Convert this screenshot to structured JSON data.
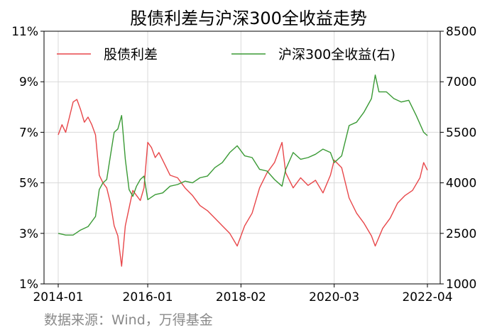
{
  "title": "股债利差与沪深300全收益走势",
  "source": "数据来源：Wind，万得基金",
  "chart_data": {
    "type": "line",
    "title": "股债利差与沪深300全收益走势",
    "grid": true,
    "legend_placement": "top",
    "x_tick_labels": [
      "2014-01",
      "2016-01",
      "2018-02",
      "2020-03",
      "2022-04"
    ],
    "x_range": [
      "2014-01",
      "2022-04"
    ],
    "left_axis": {
      "ticks": [
        "1%",
        "3%",
        "5%",
        "7%",
        "9%",
        "11%"
      ],
      "range": [
        1,
        11
      ]
    },
    "right_axis": {
      "ticks": [
        "1000",
        "2500",
        "4000",
        "5500",
        "7000",
        "8500"
      ],
      "range": [
        1000,
        8500
      ]
    },
    "series": [
      {
        "name": "股债利差",
        "axis": "left",
        "color": "#e8474a",
        "points": [
          [
            "2014-01",
            6.9
          ],
          [
            "2014-02",
            7.3
          ],
          [
            "2014-03",
            7.0
          ],
          [
            "2014-04",
            7.6
          ],
          [
            "2014-05",
            8.2
          ],
          [
            "2014-06",
            8.3
          ],
          [
            "2014-07",
            7.9
          ],
          [
            "2014-08",
            7.4
          ],
          [
            "2014-09",
            7.6
          ],
          [
            "2014-10",
            7.3
          ],
          [
            "2014-11",
            6.9
          ],
          [
            "2014-12",
            5.3
          ],
          [
            "2015-01",
            5.0
          ],
          [
            "2015-02",
            4.8
          ],
          [
            "2015-03",
            4.2
          ],
          [
            "2015-04",
            3.3
          ],
          [
            "2015-05",
            2.9
          ],
          [
            "2015-06",
            1.7
          ],
          [
            "2015-07",
            3.3
          ],
          [
            "2015-08",
            4.0
          ],
          [
            "2015-09",
            4.7
          ],
          [
            "2015-10",
            4.5
          ],
          [
            "2015-11",
            4.3
          ],
          [
            "2015-12",
            4.8
          ],
          [
            "2016-01",
            6.6
          ],
          [
            "2016-02",
            6.4
          ],
          [
            "2016-03",
            6.0
          ],
          [
            "2016-04",
            6.2
          ],
          [
            "2016-05",
            5.9
          ],
          [
            "2016-07",
            5.3
          ],
          [
            "2016-09",
            5.2
          ],
          [
            "2016-11",
            4.8
          ],
          [
            "2017-01",
            4.5
          ],
          [
            "2017-03",
            4.1
          ],
          [
            "2017-05",
            3.9
          ],
          [
            "2017-07",
            3.6
          ],
          [
            "2017-09",
            3.3
          ],
          [
            "2017-11",
            3.0
          ],
          [
            "2018-01",
            2.5
          ],
          [
            "2018-03",
            3.3
          ],
          [
            "2018-05",
            3.8
          ],
          [
            "2018-07",
            4.8
          ],
          [
            "2018-09",
            5.4
          ],
          [
            "2018-11",
            5.8
          ],
          [
            "2019-01",
            6.6
          ],
          [
            "2019-02",
            5.4
          ],
          [
            "2019-04",
            4.8
          ],
          [
            "2019-06",
            5.2
          ],
          [
            "2019-08",
            4.9
          ],
          [
            "2019-10",
            5.1
          ],
          [
            "2019-12",
            4.6
          ],
          [
            "2020-02",
            5.3
          ],
          [
            "2020-03",
            5.9
          ],
          [
            "2020-05",
            5.6
          ],
          [
            "2020-07",
            4.4
          ],
          [
            "2020-09",
            3.8
          ],
          [
            "2020-11",
            3.4
          ],
          [
            "2021-01",
            2.9
          ],
          [
            "2021-02",
            2.5
          ],
          [
            "2021-04",
            3.2
          ],
          [
            "2021-06",
            3.6
          ],
          [
            "2021-08",
            4.2
          ],
          [
            "2021-10",
            4.5
          ],
          [
            "2021-12",
            4.7
          ],
          [
            "2022-02",
            5.2
          ],
          [
            "2022-03",
            5.8
          ],
          [
            "2022-04",
            5.5
          ]
        ]
      },
      {
        "name": "沪深300全收益(右)",
        "axis": "right",
        "color": "#3a9a35",
        "points": [
          [
            "2014-01",
            2500
          ],
          [
            "2014-03",
            2450
          ],
          [
            "2014-05",
            2450
          ],
          [
            "2014-07",
            2600
          ],
          [
            "2014-09",
            2700
          ],
          [
            "2014-11",
            3000
          ],
          [
            "2014-12",
            3800
          ],
          [
            "2015-01",
            4000
          ],
          [
            "2015-02",
            4100
          ],
          [
            "2015-03",
            4800
          ],
          [
            "2015-04",
            5500
          ],
          [
            "2015-05",
            5600
          ],
          [
            "2015-06",
            6000
          ],
          [
            "2015-07",
            4700
          ],
          [
            "2015-08",
            3800
          ],
          [
            "2015-09",
            3600
          ],
          [
            "2015-10",
            3900
          ],
          [
            "2015-11",
            4100
          ],
          [
            "2015-12",
            4200
          ],
          [
            "2016-01",
            3500
          ],
          [
            "2016-03",
            3650
          ],
          [
            "2016-05",
            3700
          ],
          [
            "2016-07",
            3900
          ],
          [
            "2016-09",
            3950
          ],
          [
            "2016-11",
            4050
          ],
          [
            "2017-01",
            4000
          ],
          [
            "2017-03",
            4150
          ],
          [
            "2017-05",
            4200
          ],
          [
            "2017-07",
            4450
          ],
          [
            "2017-09",
            4600
          ],
          [
            "2017-11",
            4900
          ],
          [
            "2018-01",
            5100
          ],
          [
            "2018-03",
            4800
          ],
          [
            "2018-05",
            4750
          ],
          [
            "2018-07",
            4400
          ],
          [
            "2018-09",
            4350
          ],
          [
            "2018-11",
            4100
          ],
          [
            "2019-01",
            3900
          ],
          [
            "2019-02",
            4400
          ],
          [
            "2019-04",
            4900
          ],
          [
            "2019-06",
            4700
          ],
          [
            "2019-08",
            4750
          ],
          [
            "2019-10",
            4850
          ],
          [
            "2019-12",
            5000
          ],
          [
            "2020-02",
            4900
          ],
          [
            "2020-03",
            4600
          ],
          [
            "2020-05",
            4800
          ],
          [
            "2020-07",
            5700
          ],
          [
            "2020-09",
            5800
          ],
          [
            "2020-11",
            6100
          ],
          [
            "2021-01",
            6500
          ],
          [
            "2021-02",
            7200
          ],
          [
            "2021-03",
            6700
          ],
          [
            "2021-05",
            6700
          ],
          [
            "2021-07",
            6500
          ],
          [
            "2021-09",
            6400
          ],
          [
            "2021-11",
            6450
          ],
          [
            "2022-01",
            6000
          ],
          [
            "2022-03",
            5500
          ],
          [
            "2022-04",
            5400
          ]
        ]
      }
    ]
  }
}
